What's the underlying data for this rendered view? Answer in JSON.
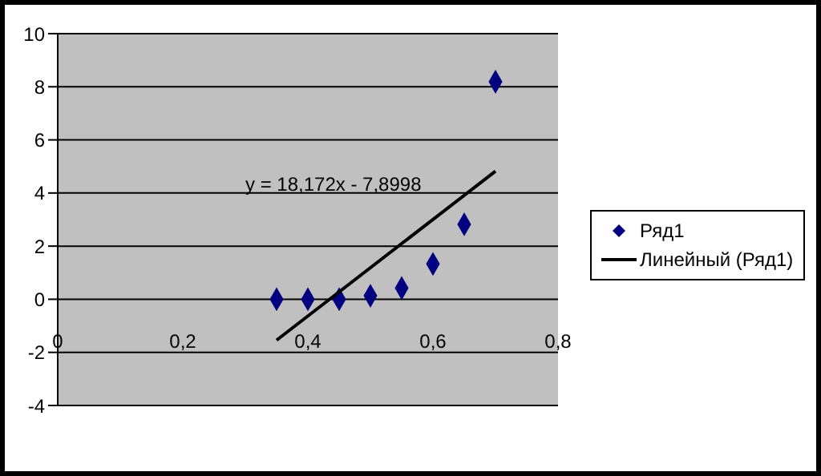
{
  "chart_data": {
    "type": "scatter",
    "x": [
      0.35,
      0.4,
      0.45,
      0.5,
      0.55,
      0.6,
      0.65,
      0.7
    ],
    "series": [
      {
        "name": "Ряд1",
        "color": "#000080",
        "values": [
          0,
          0,
          0,
          0.13,
          0.42,
          1.33,
          2.82,
          8.19
        ],
        "marker": "diamond"
      },
      {
        "name": "Линейный (Ряд1)",
        "type": "line",
        "color": "#000000",
        "x": [
          0.35,
          0.7
        ],
        "values": [
          -1.54,
          4.82
        ],
        "marker": "none"
      }
    ],
    "annotations": [
      "y = 18,172x - 7,8998"
    ],
    "xlim": [
      0,
      0.8
    ],
    "xticks": [
      0,
      {
        "value": 0.2,
        "label": "0,2"
      },
      {
        "value": 0.4,
        "label": "0,4"
      },
      {
        "value": 0.6,
        "label": "0,6"
      },
      {
        "value": 0.8,
        "label": "0,8"
      }
    ],
    "ylim": [
      -4,
      10
    ],
    "yticks": [
      -4,
      -2,
      0,
      2,
      4,
      6,
      8,
      10
    ],
    "grid": "y",
    "legend": "right"
  }
}
